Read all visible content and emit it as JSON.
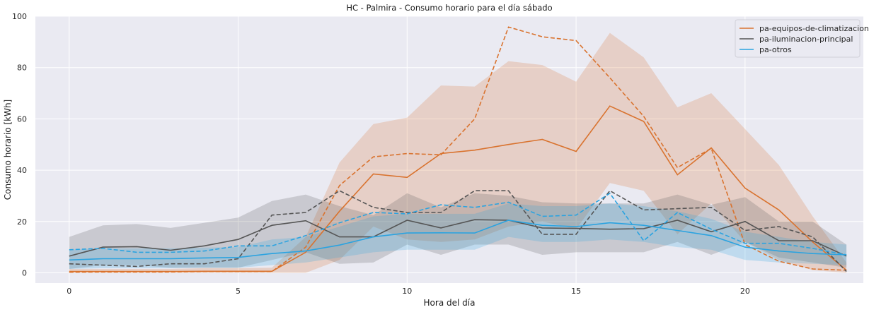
{
  "chart_data": {
    "type": "line",
    "title": "HC - Palmira - Consumo horario para el día sábado",
    "xlabel": "Hora del día",
    "ylabel": "Consumo horario [kWh]",
    "xlim": [
      -1,
      23.5
    ],
    "ylim": [
      -4,
      100
    ],
    "xticks": [
      0,
      5,
      10,
      15,
      20
    ],
    "yticks": [
      0,
      20,
      40,
      60,
      80,
      100
    ],
    "grid": true,
    "legend_position": "top-right",
    "x": [
      0,
      1,
      2,
      3,
      4,
      5,
      6,
      7,
      8,
      9,
      10,
      11,
      12,
      13,
      14,
      15,
      16,
      17,
      18,
      19,
      20,
      21,
      22,
      23
    ],
    "series": [
      {
        "name": "pa-equipos-de-climatizacion",
        "color": "#d9732f",
        "mean": [
          0.5,
          0.5,
          0.5,
          0.5,
          0.6,
          0.6,
          0.6,
          8,
          24,
          38.5,
          37.2,
          46.5,
          47.8,
          50,
          52,
          47.3,
          65,
          59,
          38.2,
          48.7,
          33,
          24.5,
          12,
          1
        ],
        "band_low": [
          0,
          0,
          0,
          0,
          0,
          0,
          0,
          0,
          5,
          18,
          13,
          12,
          13,
          18,
          20,
          17,
          35,
          32,
          15,
          27,
          12,
          5,
          1,
          0
        ],
        "band_high": [
          1.5,
          1.5,
          1.5,
          1.5,
          1.8,
          1.8,
          2,
          14,
          43,
          58,
          60.5,
          73,
          72.6,
          82.5,
          81,
          74.5,
          93.5,
          84,
          64.5,
          70,
          56,
          42,
          22,
          4
        ],
        "dashed": [
          0.2,
          0.3,
          0.3,
          0.3,
          0.5,
          0.5,
          0.5,
          10,
          34,
          45.2,
          46.5,
          46,
          60,
          95.8,
          92,
          90.5,
          76,
          61,
          41,
          48.5,
          11,
          4.5,
          1.5,
          1
        ]
      },
      {
        "name": "pa-iluminacion-principal",
        "color": "#555555",
        "mean": [
          6.5,
          10,
          10.2,
          8.8,
          10.5,
          13,
          18.5,
          20.3,
          14,
          14,
          20.5,
          17.5,
          20.7,
          20.5,
          17.5,
          17.3,
          17,
          17.2,
          20.5,
          16,
          20,
          12.5,
          12.5,
          6.5
        ],
        "band_low": [
          1.5,
          3,
          3,
          2,
          2,
          2,
          5,
          8,
          3.5,
          4,
          11,
          7,
          11,
          11,
          7,
          8,
          8,
          8,
          12,
          7,
          12,
          6,
          4,
          2
        ],
        "band_high": [
          14,
          18.5,
          19,
          17.5,
          19.5,
          21.5,
          28,
          30.5,
          26,
          22.5,
          31,
          25.5,
          31,
          30,
          27.5,
          27,
          27,
          27,
          30.5,
          26.5,
          29.5,
          20,
          20,
          11
        ],
        "dashed": [
          3.5,
          3,
          2.5,
          3.5,
          3.5,
          5.5,
          22.5,
          23.5,
          32,
          25.5,
          23.5,
          23.5,
          32,
          32,
          15,
          15,
          32,
          24.5,
          25,
          25.5,
          16.5,
          18,
          14,
          0.5
        ]
      },
      {
        "name": "pa-otros",
        "color": "#2ba3e0",
        "mean": [
          5,
          5.5,
          5.5,
          5.5,
          5.8,
          6,
          7.5,
          8.5,
          10.8,
          14,
          15.5,
          15.6,
          15.5,
          20.5,
          18.5,
          18,
          19.5,
          18.5,
          16.5,
          14.5,
          10,
          8.5,
          7.5,
          7
        ],
        "band_low": [
          1.5,
          1.8,
          1.8,
          1.8,
          2,
          2,
          3,
          4,
          6,
          8,
          9,
          9,
          9,
          14,
          12,
          12,
          13,
          12,
          10,
          9,
          5,
          4,
          3.5,
          3
        ],
        "band_high": [
          9,
          9.5,
          9.5,
          9.5,
          9.8,
          10,
          13,
          14,
          18,
          22,
          23,
          23,
          23,
          27,
          26,
          26,
          27,
          26,
          24,
          21,
          16,
          14,
          12,
          11
        ],
        "dashed": [
          9,
          9.5,
          8,
          8,
          8.5,
          10.5,
          10.5,
          14.5,
          19.5,
          23.5,
          23,
          26.5,
          25.5,
          27.5,
          22,
          22.5,
          31,
          12.5,
          23.5,
          17,
          11.5,
          11.5,
          9.5,
          7
        ]
      }
    ]
  }
}
